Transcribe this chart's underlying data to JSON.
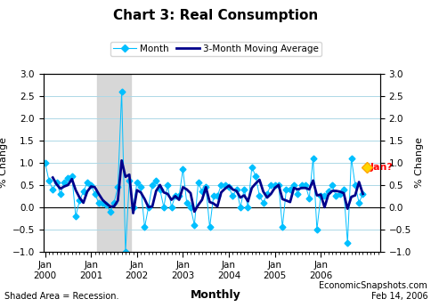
{
  "title": "Chart 3: Real Consumption",
  "legend_month": "Month",
  "legend_ma": "3-Month Moving Average",
  "ylabel_left": "% Change",
  "ylabel_right": "% Change",
  "footer_left": "Shaded Area = Recession.",
  "footer_center": "Monthly",
  "footer_right": "EconomicSnapshots.com\nFeb 14, 2006",
  "ylim": [
    -1.0,
    3.0
  ],
  "yticks": [
    -1.0,
    -0.5,
    0.0,
    0.5,
    1.0,
    1.5,
    2.0,
    2.5,
    3.0
  ],
  "recession_start_idx": 14,
  "recession_end_idx": 23,
  "jan_forecast_value": 0.9,
  "month_color": "#00BFFF",
  "ma_color": "#00008B",
  "forecast_color": "#FFD700",
  "forecast_label_color": "red",
  "grid_color": "#ADD8E6",
  "monthly_values": [
    1.0,
    0.6,
    0.4,
    0.55,
    0.3,
    0.55,
    0.65,
    0.7,
    -0.2,
    0.15,
    0.35,
    0.55,
    0.5,
    0.3,
    0.1,
    0.1,
    0.05,
    -0.1,
    0.1,
    0.45,
    2.6,
    -1.0,
    0.6,
    0.0,
    0.55,
    0.45,
    -0.45,
    0.0,
    0.5,
    0.6,
    0.4,
    0.0,
    0.5,
    0.0,
    0.25,
    0.25,
    0.85,
    0.1,
    0.0,
    -0.4,
    0.55,
    0.35,
    0.45,
    -0.45,
    0.25,
    0.25,
    0.5,
    0.5,
    0.45,
    0.25,
    0.4,
    0.0,
    0.4,
    0.0,
    0.9,
    0.7,
    0.25,
    0.1,
    0.3,
    0.5,
    0.5,
    0.5,
    -0.45,
    0.4,
    0.4,
    0.5,
    0.3,
    0.5,
    0.5,
    0.2,
    1.1,
    -0.5,
    0.25,
    0.25,
    0.35,
    0.5,
    0.25,
    0.3,
    0.4,
    -0.8,
    1.1,
    0.5,
    0.1,
    0.3
  ],
  "n_months": 84,
  "xtick_positions": [
    0,
    12,
    24,
    36,
    48,
    60,
    72
  ],
  "xtick_labels": [
    "Jan\n2000",
    "Jan\n2001",
    "Jan\n2002",
    "Jan\n2003",
    "Jan\n2004",
    "Jan\n2005",
    "Jan\n2006"
  ]
}
